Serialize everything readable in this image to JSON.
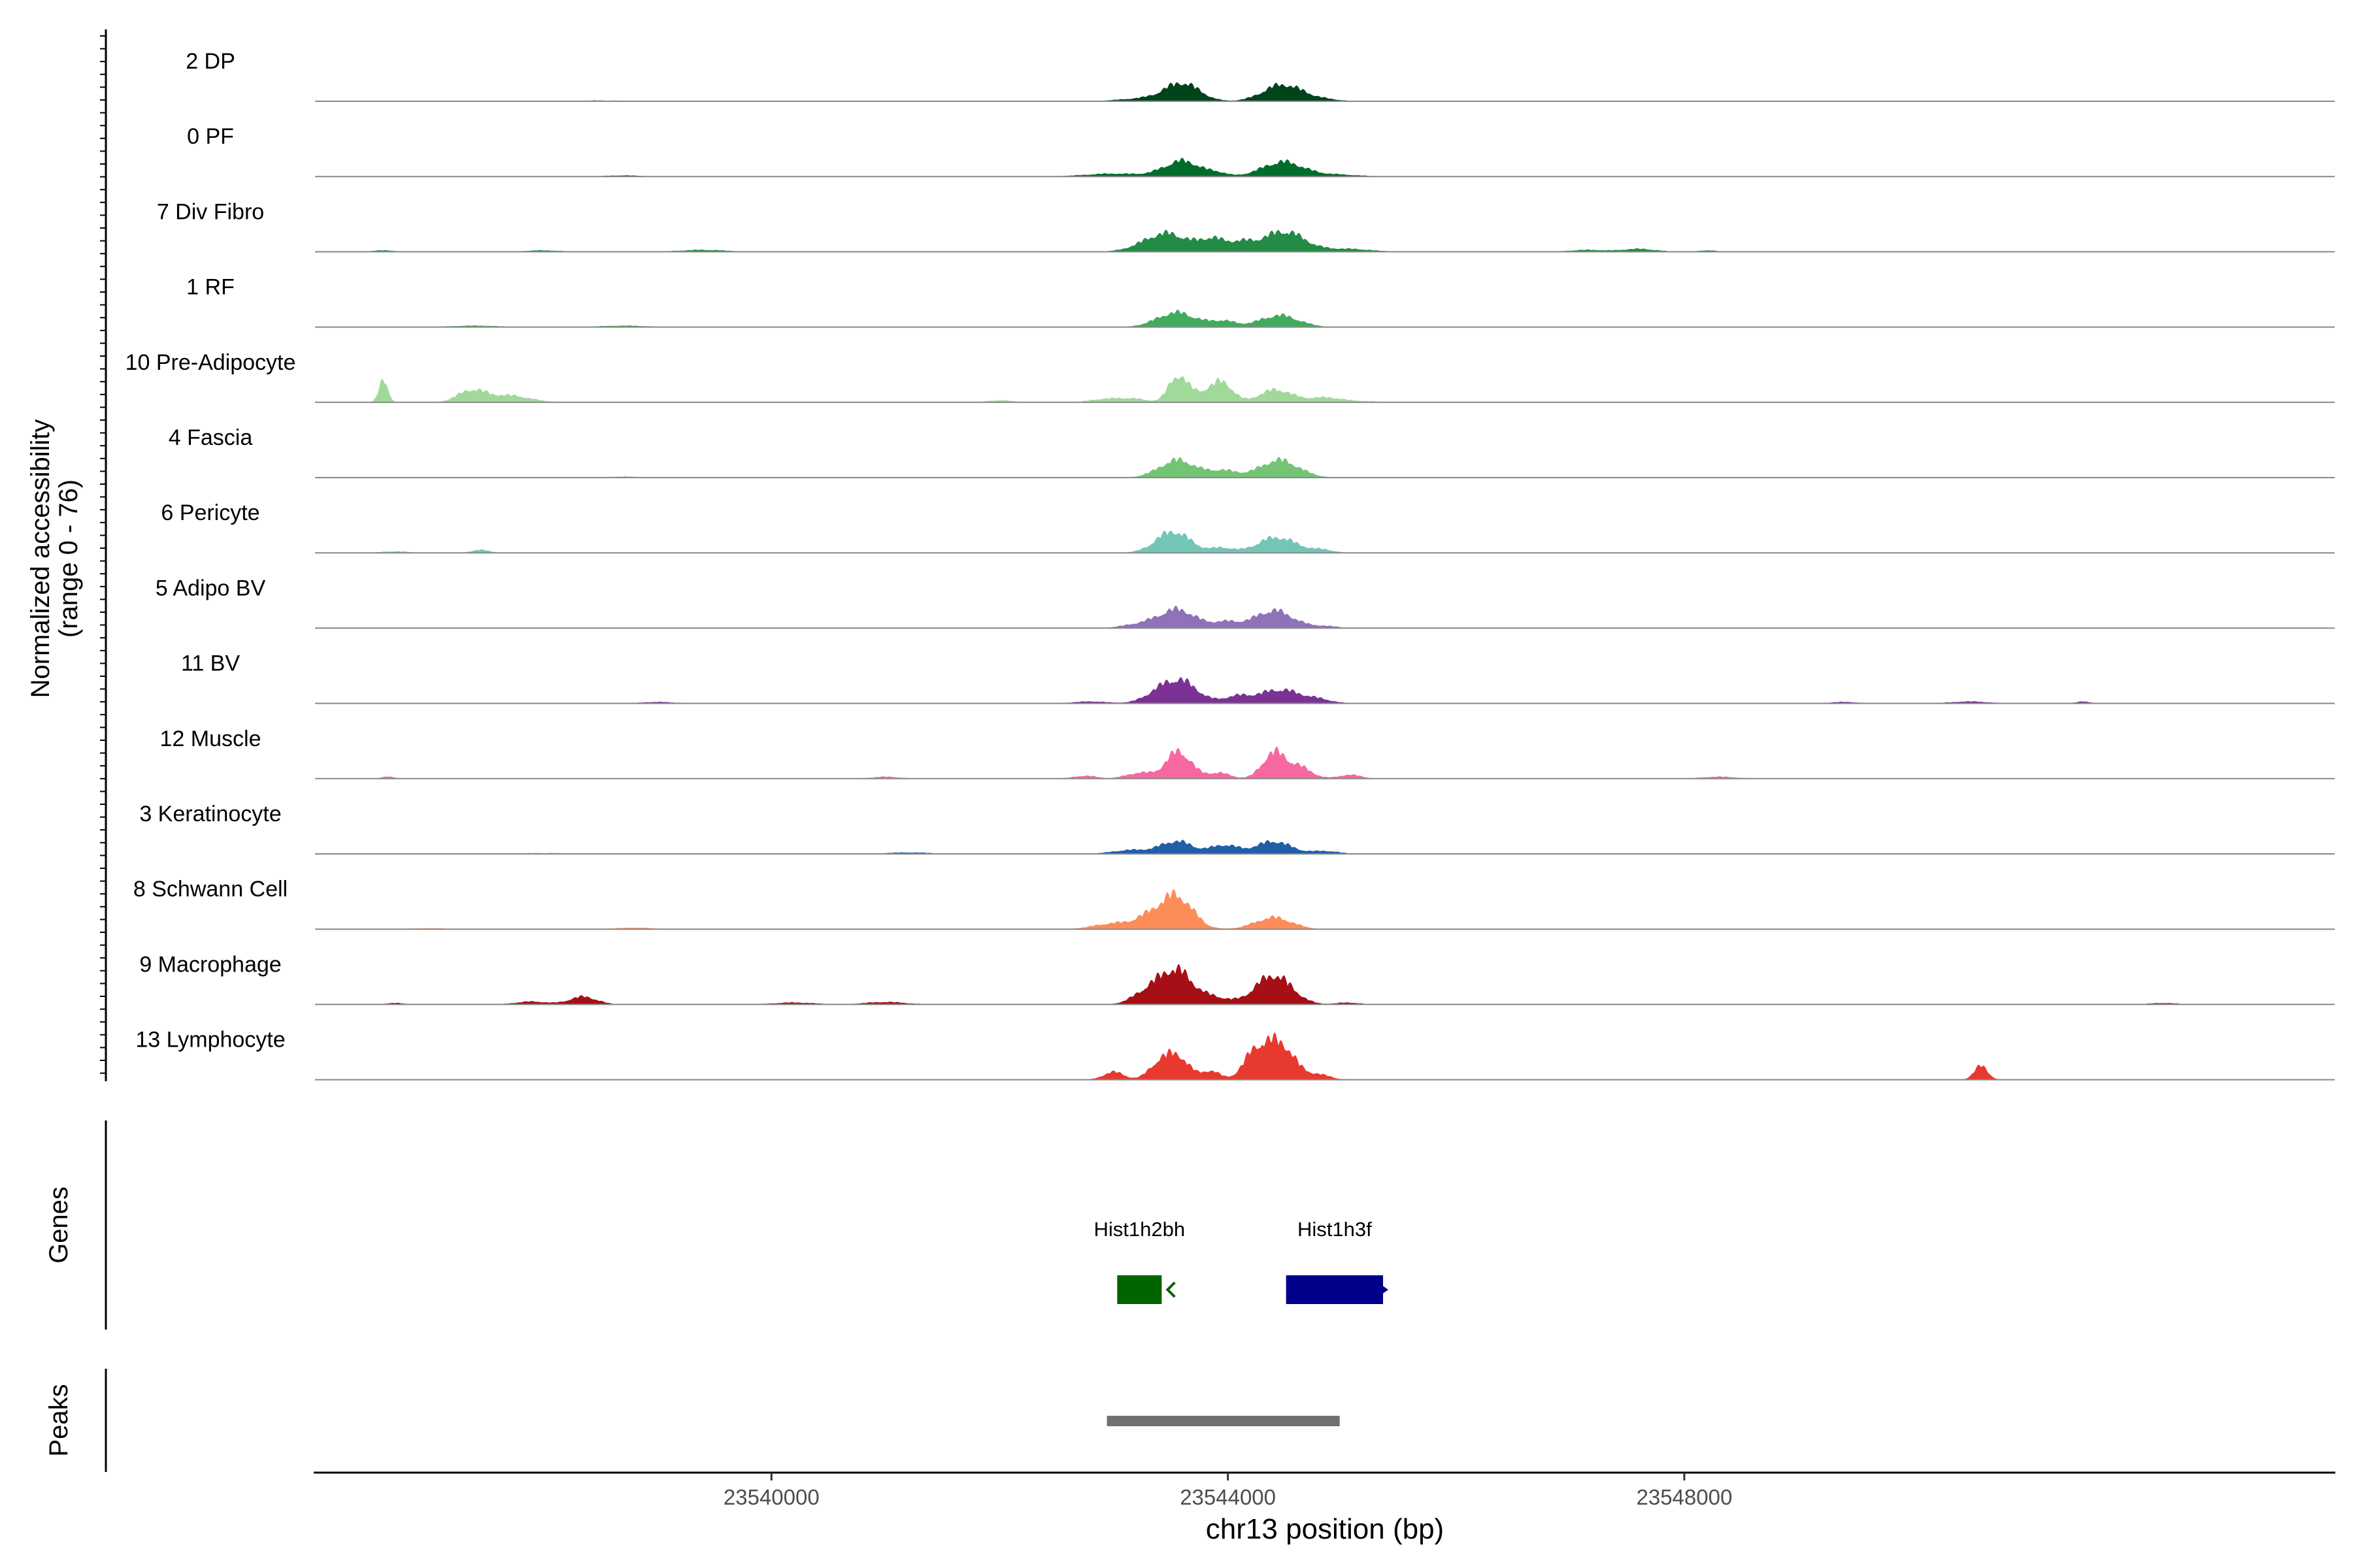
{
  "chart_data": {
    "type": "area",
    "chromosome": "chr13",
    "xlabel": "chr13 position (bp)",
    "ylabel_line1": "Normalized accessibility",
    "ylabel_line2": "(range 0 - 76)",
    "y_range": [
      0,
      76
    ],
    "xlim": [
      23536000,
      23553700
    ],
    "x_ticks": [
      23540000,
      23544000,
      23548000
    ],
    "x_tick_labels": [
      "23540000",
      "23544000",
      "23548000"
    ],
    "track_labels": {
      "genes": "Genes",
      "peaks": "Peaks"
    },
    "series": [
      {
        "name": "2 DP",
        "color": "#00441b",
        "peaks": [
          [
            23543602,
            18,
            150
          ],
          [
            23544480,
            17,
            170
          ],
          [
            23543280,
            3,
            220
          ],
          [
            23544820,
            2,
            150
          ],
          [
            23538500,
            0.8,
            200
          ],
          [
            23541300,
            0.6,
            150
          ]
        ]
      },
      {
        "name": "0 PF",
        "color": "#006d2c",
        "peaks": [
          [
            23543602,
            16,
            160
          ],
          [
            23544480,
            15,
            180
          ],
          [
            23543000,
            3,
            250
          ],
          [
            23544950,
            2,
            200
          ],
          [
            23543920,
            3,
            80
          ],
          [
            23538700,
            1.2,
            150
          ]
        ]
      },
      {
        "name": "7 Div Fibro",
        "color": "#238b45",
        "peaks": [
          [
            23543460,
            19,
            200
          ],
          [
            23544490,
            21,
            180
          ],
          [
            23543860,
            11,
            100
          ],
          [
            23544100,
            9,
            120
          ],
          [
            23545050,
            3,
            200
          ],
          [
            23547600,
            3,
            150
          ],
          [
            23536600,
            1.5,
            100
          ],
          [
            23538000,
            1.5,
            150
          ],
          [
            23539400,
            2,
            200
          ],
          [
            23547150,
            2,
            150
          ],
          [
            23548200,
            1.5,
            80
          ]
        ]
      },
      {
        "name": "1 RF",
        "color": "#41ab5d",
        "peaks": [
          [
            23543550,
            15,
            170
          ],
          [
            23544450,
            12,
            170
          ],
          [
            23543960,
            6,
            110
          ],
          [
            23538700,
            1.5,
            200
          ],
          [
            23537400,
            1.5,
            200
          ]
        ]
      },
      {
        "name": "10 Pre-Adipocyte",
        "color": "#a1d99b",
        "peaks": [
          [
            23536600,
            22,
            40
          ],
          [
            23537370,
            12,
            120
          ],
          [
            23537700,
            7,
            180
          ],
          [
            23543560,
            26,
            80
          ],
          [
            23543780,
            10,
            120
          ],
          [
            23543960,
            18,
            90
          ],
          [
            23544420,
            13,
            140
          ],
          [
            23542000,
            2,
            120
          ],
          [
            23545200,
            1,
            150
          ],
          [
            23542900,
            3,
            120
          ],
          [
            23543150,
            4,
            130
          ],
          [
            23544850,
            5,
            150
          ]
        ]
      },
      {
        "name": "4 Fascia",
        "color": "#74c476",
        "peaks": [
          [
            23543560,
            18,
            160
          ],
          [
            23544450,
            18,
            170
          ],
          [
            23543960,
            7,
            120
          ],
          [
            23538700,
            1,
            150
          ]
        ]
      },
      {
        "name": "6 Pericyte",
        "color": "#73c6b6",
        "peaks": [
          [
            23543520,
            22,
            150
          ],
          [
            23544430,
            16,
            170
          ],
          [
            23543950,
            5,
            100
          ],
          [
            23536700,
            1.5,
            120
          ],
          [
            23537450,
            3,
            80
          ],
          [
            23544830,
            3,
            100
          ]
        ]
      },
      {
        "name": "5 Adipo BV",
        "color": "#8f72b8",
        "peaks": [
          [
            23543560,
            19,
            160
          ],
          [
            23544400,
            18,
            170
          ],
          [
            23543980,
            6,
            110
          ],
          [
            23543230,
            4,
            150
          ],
          [
            23544850,
            2,
            120
          ]
        ]
      },
      {
        "name": "11 BV",
        "color": "#7b3294",
        "peaks": [
          [
            23543590,
            22,
            150
          ],
          [
            23544450,
            14,
            170
          ],
          [
            23543380,
            8,
            130
          ],
          [
            23544080,
            7,
            120
          ],
          [
            23544780,
            4,
            130
          ],
          [
            23542800,
            2,
            150
          ],
          [
            23539000,
            1.5,
            140
          ],
          [
            23550500,
            2,
            160
          ],
          [
            23551500,
            2,
            60
          ],
          [
            23549400,
            1.5,
            120
          ]
        ]
      },
      {
        "name": "12 Muscle",
        "color": "#f768a1",
        "peaks": [
          [
            23543570,
            28,
            110
          ],
          [
            23544400,
            26,
            100
          ],
          [
            23544620,
            12,
            110
          ],
          [
            23543230,
            6,
            120
          ],
          [
            23543920,
            6,
            100
          ],
          [
            23545070,
            4,
            100
          ],
          [
            23542750,
            3,
            100
          ],
          [
            23536640,
            2,
            60
          ],
          [
            23541000,
            2,
            120
          ],
          [
            23548300,
            2,
            150
          ]
        ]
      },
      {
        "name": "3 Keratinocyte",
        "color": "#225ea8",
        "peaks": [
          [
            23543550,
            13,
            140
          ],
          [
            23544400,
            13,
            150
          ],
          [
            23543970,
            9,
            120
          ],
          [
            23543150,
            4,
            160
          ],
          [
            23544850,
            3,
            120
          ],
          [
            23541200,
            1.5,
            200
          ],
          [
            23538000,
            0.8,
            250
          ]
        ]
      },
      {
        "name": "8 Schwann Cell",
        "color": "#fc8d59",
        "peaks": [
          [
            23543550,
            34,
            140
          ],
          [
            23543300,
            10,
            120
          ],
          [
            23544400,
            12,
            160
          ],
          [
            23543000,
            6,
            170
          ],
          [
            23538800,
            1.5,
            160
          ],
          [
            23537000,
            1,
            150
          ]
        ]
      },
      {
        "name": "9 Macrophage",
        "color": "#a50f15",
        "peaks": [
          [
            23543550,
            34,
            140
          ],
          [
            23544400,
            30,
            160
          ],
          [
            23543300,
            13,
            130
          ],
          [
            23543880,
            7,
            130
          ],
          [
            23538350,
            8,
            120
          ],
          [
            23537900,
            3,
            140
          ],
          [
            23536700,
            1.5,
            80
          ],
          [
            23541000,
            2.5,
            180
          ],
          [
            23540200,
            2,
            180
          ],
          [
            23545050,
            2,
            100
          ],
          [
            23552200,
            1.5,
            120
          ]
        ]
      },
      {
        "name": "13 Lymphocyte",
        "color": "#e8392e",
        "peaks": [
          [
            23544450,
            38,
            130
          ],
          [
            23544230,
            24,
            100
          ],
          [
            23543560,
            24,
            100
          ],
          [
            23543390,
            15,
            90
          ],
          [
            23543000,
            8,
            90
          ],
          [
            23543850,
            9,
            80
          ],
          [
            23544800,
            5,
            100
          ],
          [
            23550600,
            14,
            60
          ]
        ]
      }
    ],
    "genes": [
      {
        "name": "Hist1h2bh",
        "start": 23543030,
        "end": 23543420,
        "strand": "-",
        "color": "#006400"
      },
      {
        "name": "Hist1h3f",
        "start": 23544510,
        "end": 23545360,
        "strand": "+",
        "color": "#00008b"
      }
    ],
    "peaks_track": [
      {
        "start": 23542940,
        "end": 23544980,
        "color": "#707070"
      }
    ]
  }
}
